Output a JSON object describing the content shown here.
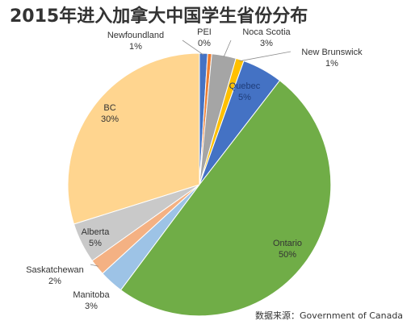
{
  "chart_data": {
    "type": "pie",
    "title": "2015年进入加拿大中国学生省份分布",
    "source": "数据来源：Government of Canada",
    "slices": [
      {
        "name": "Newfoundland",
        "value": 1,
        "label": "1%",
        "color": "#4472c4"
      },
      {
        "name": "PEI",
        "value": 0.5,
        "label": "0%",
        "color": "#ed7d31"
      },
      {
        "name": "Noca Scotia",
        "value": 3,
        "label": "3%",
        "color": "#a5a5a5"
      },
      {
        "name": "New Brunswick",
        "value": 1,
        "label": "1%",
        "color": "#ffc000"
      },
      {
        "name": "Quebec",
        "value": 5,
        "label": "5%",
        "color": "#4472c4"
      },
      {
        "name": "Ontario",
        "value": 50,
        "label": "50%",
        "color": "#70ad47"
      },
      {
        "name": "Manitoba",
        "value": 3,
        "label": "3%",
        "color": "#9dc3e6"
      },
      {
        "name": "Saskatchewan",
        "value": 2,
        "label": "2%",
        "color": "#f4b183"
      },
      {
        "name": "Alberta",
        "value": 5,
        "label": "5%",
        "color": "#c9c9c9"
      },
      {
        "name": "BC",
        "value": 30,
        "label": "30%",
        "color": "#ffd58f"
      }
    ]
  }
}
